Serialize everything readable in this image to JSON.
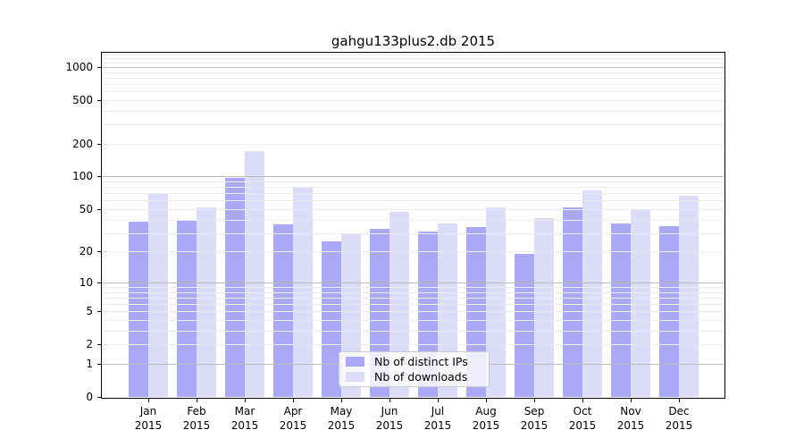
{
  "figure": {
    "title": "gahgu133plus2.db 2015"
  },
  "chart_data": {
    "type": "bar",
    "title": "gahgu133plus2.db 2015",
    "categories": [
      "Jan",
      "Feb",
      "Mar",
      "Apr",
      "May",
      "Jun",
      "Jul",
      "Aug",
      "Sep",
      "Oct",
      "Nov",
      "Dec"
    ],
    "x_sub_label": "2015",
    "series": [
      {
        "name": "Nb of distinct IPs",
        "color": "#a9a9f7",
        "values": [
          38,
          40,
          97,
          36,
          25,
          33,
          31,
          34,
          19,
          52,
          37,
          35
        ]
      },
      {
        "name": "Nb of downloads",
        "color": "#dcdcf9",
        "values": [
          70,
          52,
          172,
          79,
          30,
          47,
          37,
          52,
          41,
          75,
          50,
          66
        ]
      }
    ],
    "yscale": "log1p",
    "yticks": [
      0,
      1,
      2,
      5,
      10,
      20,
      50,
      100,
      200,
      500,
      1000
    ],
    "ylim": [
      0,
      1320
    ],
    "grid": true,
    "grid_over_bars": true,
    "legend_position": "bottom-center",
    "xlabel": "",
    "ylabel": ""
  },
  "colors": {
    "bar_distinct_ips": "#a9a9f7",
    "bar_downloads": "#dcdcf9",
    "grid_major": "#bbbbbb",
    "grid_minor": "#ebebeb",
    "axis": "#000000",
    "legend_border": "#cccccc"
  }
}
